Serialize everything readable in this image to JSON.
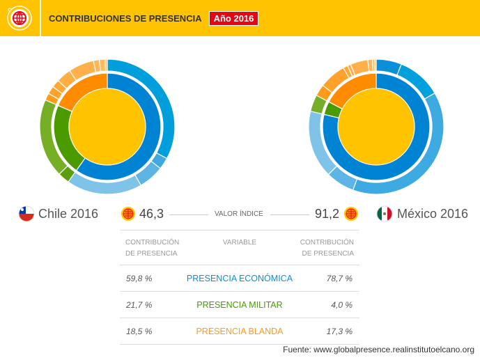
{
  "header": {
    "title": "CONTRIBUCIONES DE PRESENCIA",
    "year_badge": "Año 2016",
    "logo": "globe-icon"
  },
  "colors": {
    "header": "#ffc300",
    "badge": "#e30613",
    "economica": "#0083d3",
    "militar": "#4a9a00",
    "blanda": "#ff8c00",
    "center": "#ffc300"
  },
  "left": {
    "country": "Chile 2016",
    "index_value": "46,3"
  },
  "right": {
    "country": "México 2016",
    "index_value": "91,2"
  },
  "index_label": "VALOR ÍNDICE",
  "table": {
    "headers": [
      "CONTRIBUCIÓN\nDE PRESENCIA",
      "VARIABLE",
      "CONTRIBUCIÓN\nDE PRESENCIA"
    ],
    "rows": [
      {
        "left": "59,8 %",
        "variable": "PRESENCIA ECONÓMICA",
        "right": "78,7 %",
        "color": "#0a8fd8"
      },
      {
        "left": "21,7 %",
        "variable": "PRESENCIA MILITAR",
        "right": "4,0 %",
        "color": "#4a9a00"
      },
      {
        "left": "18,5 %",
        "variable": "PRESENCIA BLANDA",
        "right": "17,3 %",
        "color": "#ff9a1a"
      }
    ]
  },
  "source": "Fuente: www.globalpresence.realinstitutoelcano.org",
  "chart_data": [
    {
      "type": "pie",
      "title": "Chile 2016",
      "categories": [
        "Presencia económica",
        "Presencia militar",
        "Presencia blanda"
      ],
      "values": [
        59.8,
        21.7,
        18.5
      ],
      "outer_ring": [
        [
          32.8,
          2.8,
          6.1,
          18.1
        ],
        [
          2.8,
          18.9
        ],
        [
          1.7,
          1.9,
          1.9,
          3.6,
          6.1,
          1.4,
          1.4,
          0.5
        ]
      ],
      "outer_colors": [
        [
          "#009fdb",
          "#3fa9e0",
          "#5db4e3",
          "#80c3e8"
        ],
        [
          "#5a9e0c",
          "#76ae25"
        ],
        [
          "#ff9a1a",
          "#ffa12a",
          "#ffa838",
          "#ffae44",
          "#ffb04a",
          "#ffb655",
          "#ffbb60",
          "#ffc06a"
        ]
      ]
    },
    {
      "type": "pie",
      "title": "México 2016",
      "categories": [
        "Presencia económica",
        "Presencia militar",
        "Presencia blanda"
      ],
      "values": [
        78.7,
        4.0,
        17.3
      ],
      "outer_ring": [
        [
          6.1,
          10.6,
          38.9,
          6.9,
          16.2
        ],
        [
          4.0
        ],
        [
          2.8,
          6.4,
          1.1,
          0.8,
          4.2,
          1.1,
          0.5,
          0.4
        ]
      ],
      "outer_colors": [
        [
          "#0a8fd8",
          "#00a0dc",
          "#3daae2",
          "#5cb5e6",
          "#80c3e9"
        ],
        [
          "#76ae25"
        ],
        [
          "#ff9a1a",
          "#ffa12a",
          "#ffa838",
          "#ffae44",
          "#ffb04a",
          "#ffb655",
          "#ffbb60",
          "#ffc06a"
        ]
      ]
    }
  ]
}
